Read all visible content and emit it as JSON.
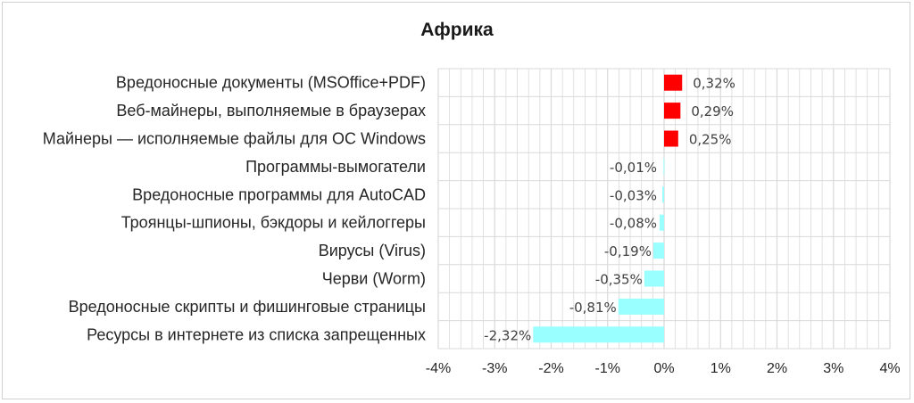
{
  "chart_data": {
    "type": "bar",
    "orientation": "horizontal",
    "title": "Африка",
    "categories": [
      "Вредоносные документы (MSOffice+PDF)",
      "Веб-майнеры, выполняемые в браузерах",
      "Майнеры — исполняемые файлы для ОС Windows",
      "Программы-вымогатели",
      "Вредоносные программы для AutoCAD",
      "Троянцы-шпионы, бэкдоры и кейлоггеры",
      "Вирусы (Virus)",
      "Черви (Worm)",
      "Вредоносные скрипты и фишинговые страницы",
      "Ресурсы в интернете из списка запрещенных"
    ],
    "values": [
      0.32,
      0.29,
      0.25,
      -0.01,
      -0.03,
      -0.08,
      -0.19,
      -0.35,
      -0.81,
      -2.32
    ],
    "data_labels": [
      "0,32%",
      "0,29%",
      "0,25%",
      "-0,01%",
      "-0,03%",
      "-0,08%",
      "-0,19%",
      "-0,35%",
      "-0,81%",
      "-2,32%"
    ],
    "xlim": [
      -4,
      4
    ],
    "x_ticks": [
      -4,
      -3,
      -2,
      -1,
      0,
      1,
      2,
      3,
      4
    ],
    "x_tick_labels": [
      "-4%",
      "-3%",
      "-2%",
      "-1%",
      "0%",
      "1%",
      "2%",
      "3%",
      "4%"
    ],
    "grid": true,
    "colors": {
      "positive": "#ff0000",
      "negative": "#99ffff",
      "grid": "#d9d9d9"
    }
  }
}
